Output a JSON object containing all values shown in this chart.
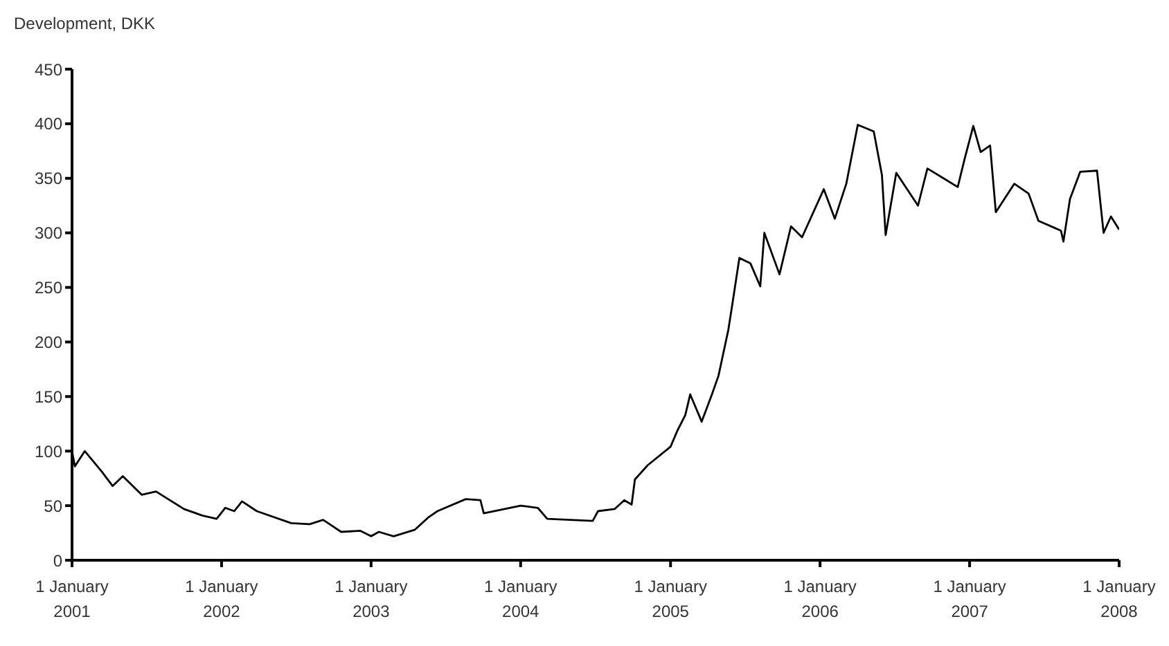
{
  "chart_data": {
    "type": "line",
    "ylabel": "Development, DKK",
    "grid": false,
    "legend": false,
    "marker": "none",
    "line_style": "solid",
    "xlim": [
      "2001-01-01",
      "2008-01-01"
    ],
    "xticks": [
      {
        "value": "2001-01-01",
        "label": "1 January 2001"
      },
      {
        "value": "2002-01-01",
        "label": "1 January 2002"
      },
      {
        "value": "2003-01-01",
        "label": "1 January 2003"
      },
      {
        "value": "2004-01-01",
        "label": "1 January 2004"
      },
      {
        "value": "2005-01-01",
        "label": "1 January 2005"
      },
      {
        "value": "2006-01-01",
        "label": "1 January 2006"
      },
      {
        "value": "2007-01-01",
        "label": "1 January 2007"
      },
      {
        "value": "2008-01-01",
        "label": "1 January 2008"
      }
    ],
    "ylim": [
      0,
      450
    ],
    "yticks": [
      0,
      50,
      100,
      150,
      200,
      250,
      300,
      350,
      400,
      450
    ],
    "x": [
      "2001-01-01",
      "2001-01-08",
      "2001-02-01",
      "2001-03-15",
      "2001-04-10",
      "2001-05-05",
      "2001-06-20",
      "2001-07-25",
      "2001-10-01",
      "2001-11-15",
      "2001-12-20",
      "2002-01-10",
      "2002-02-01",
      "2002-02-20",
      "2002-03-28",
      "2002-06-20",
      "2002-08-04",
      "2002-09-06",
      "2002-10-20",
      "2002-12-06",
      "2003-01-01",
      "2003-01-20",
      "2003-02-25",
      "2003-04-18",
      "2003-05-20",
      "2003-06-12",
      "2003-08-20",
      "2003-09-25",
      "2003-10-03",
      "2004-01-01",
      "2004-02-12",
      "2004-03-06",
      "2004-06-25",
      "2004-07-08",
      "2004-08-18",
      "2004-09-10",
      "2004-09-28",
      "2004-10-06",
      "2004-11-06",
      "2005-01-01",
      "2005-01-18",
      "2005-02-06",
      "2005-02-18",
      "2005-03-18",
      "2005-04-12",
      "2005-04-28",
      "2005-05-22",
      "2005-06-01",
      "2005-06-18",
      "2005-07-15",
      "2005-08-08",
      "2005-08-18",
      "2005-09-24",
      "2005-10-22",
      "2005-11-18",
      "2006-01-10",
      "2006-02-06",
      "2006-03-06",
      "2006-04-03",
      "2006-05-12",
      "2006-06-01",
      "2006-06-10",
      "2006-07-06",
      "2006-08-28",
      "2006-09-20",
      "2006-10-25",
      "2006-12-03",
      "2006-12-20",
      "2007-01-10",
      "2007-01-28",
      "2007-02-20",
      "2007-03-06",
      "2007-04-20",
      "2007-05-25",
      "2007-06-18",
      "2007-08-12",
      "2007-08-18",
      "2007-09-03",
      "2007-09-28",
      "2007-11-08",
      "2007-11-24",
      "2007-12-12",
      "2008-01-01"
    ],
    "series": [
      {
        "color": "#000000",
        "values": [
          100,
          86,
          100,
          81,
          68,
          77,
          60,
          63,
          47,
          41,
          38,
          48,
          45,
          54,
          45,
          34,
          33,
          37,
          26,
          27,
          22,
          26,
          22,
          28,
          39,
          45,
          56,
          55,
          43,
          50,
          48,
          38,
          36,
          45,
          47,
          55,
          51,
          74,
          87,
          104,
          119,
          133,
          152,
          127,
          152,
          169,
          211,
          235,
          277,
          272,
          251,
          300,
          262,
          306,
          296,
          340,
          313,
          345,
          399,
          393,
          353,
          298,
          355,
          325,
          359,
          351,
          342,
          368,
          398,
          374,
          380,
          319,
          345,
          336,
          311,
          302,
          292,
          331,
          356,
          357,
          300,
          315,
          303
        ]
      }
    ]
  }
}
